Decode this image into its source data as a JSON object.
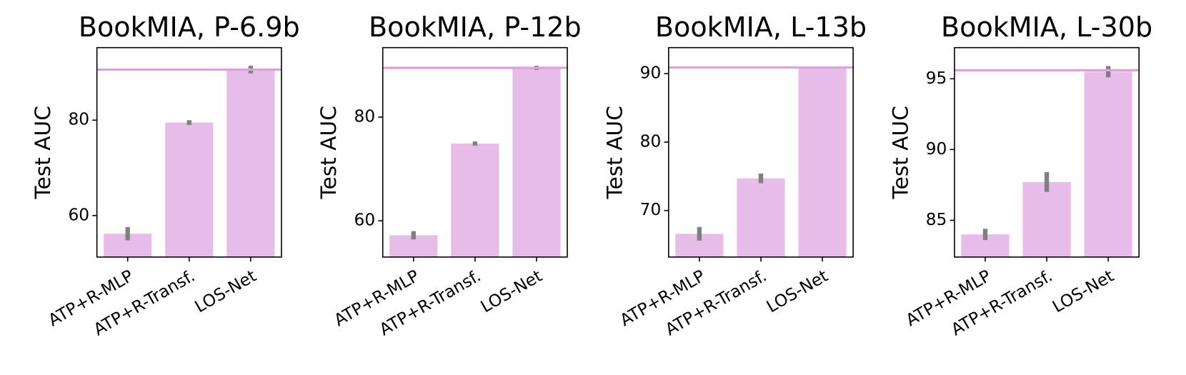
{
  "chart_data": [
    {
      "type": "bar",
      "title": "BookMIA, P-6.9b",
      "ylabel": "Test AUC",
      "categories": [
        "ATP+R-MLP",
        "ATP+R-Transf.",
        "LOS-Net"
      ],
      "values": [
        56.2,
        79.5,
        90.6
      ],
      "errors": [
        1.4,
        0.5,
        0.8
      ],
      "color": "#e8bce8",
      "error_color": "#808080",
      "hline": 90.6,
      "hline_color": "#dda0dd",
      "ylim": [
        51.3,
        95.2
      ],
      "yticks": [
        60,
        80
      ]
    },
    {
      "type": "bar",
      "title": "BookMIA, P-12b",
      "ylabel": "Test AUC",
      "categories": [
        "ATP+R-MLP",
        "ATP+R-Transf.",
        "LOS-Net"
      ],
      "values": [
        57.2,
        74.9,
        89.5
      ],
      "errors": [
        0.8,
        0.4,
        0.4
      ],
      "color": "#e8bce8",
      "error_color": "#808080",
      "hline": 89.5,
      "hline_color": "#dda0dd",
      "ylim": [
        53.0,
        93.4
      ],
      "yticks": [
        60,
        80
      ]
    },
    {
      "type": "bar",
      "title": "BookMIA, L-13b",
      "ylabel": "Test AUC",
      "categories": [
        "ATP+R-MLP",
        "ATP+R-Transf.",
        "LOS-Net"
      ],
      "values": [
        66.6,
        74.7,
        90.9
      ],
      "errors": [
        1.0,
        0.7,
        0.1
      ],
      "color": "#e8bce8",
      "error_color": "#808080",
      "hline": 90.9,
      "hline_color": "#dda0dd",
      "ylim": [
        63.2,
        93.8
      ],
      "yticks": [
        70,
        80,
        90
      ]
    },
    {
      "type": "bar",
      "title": "BookMIA, L-30b",
      "ylabel": "Test AUC",
      "categories": [
        "ATP+R-MLP",
        "ATP+R-Transf.",
        "LOS-Net"
      ],
      "values": [
        84.0,
        87.7,
        95.5
      ],
      "errors": [
        0.4,
        0.7,
        0.4
      ],
      "color": "#e8bce8",
      "error_color": "#808080",
      "hline": 95.6,
      "hline_color": "#dda0dd",
      "ylim": [
        82.4,
        97.2
      ],
      "yticks": [
        85,
        90,
        95
      ]
    }
  ]
}
